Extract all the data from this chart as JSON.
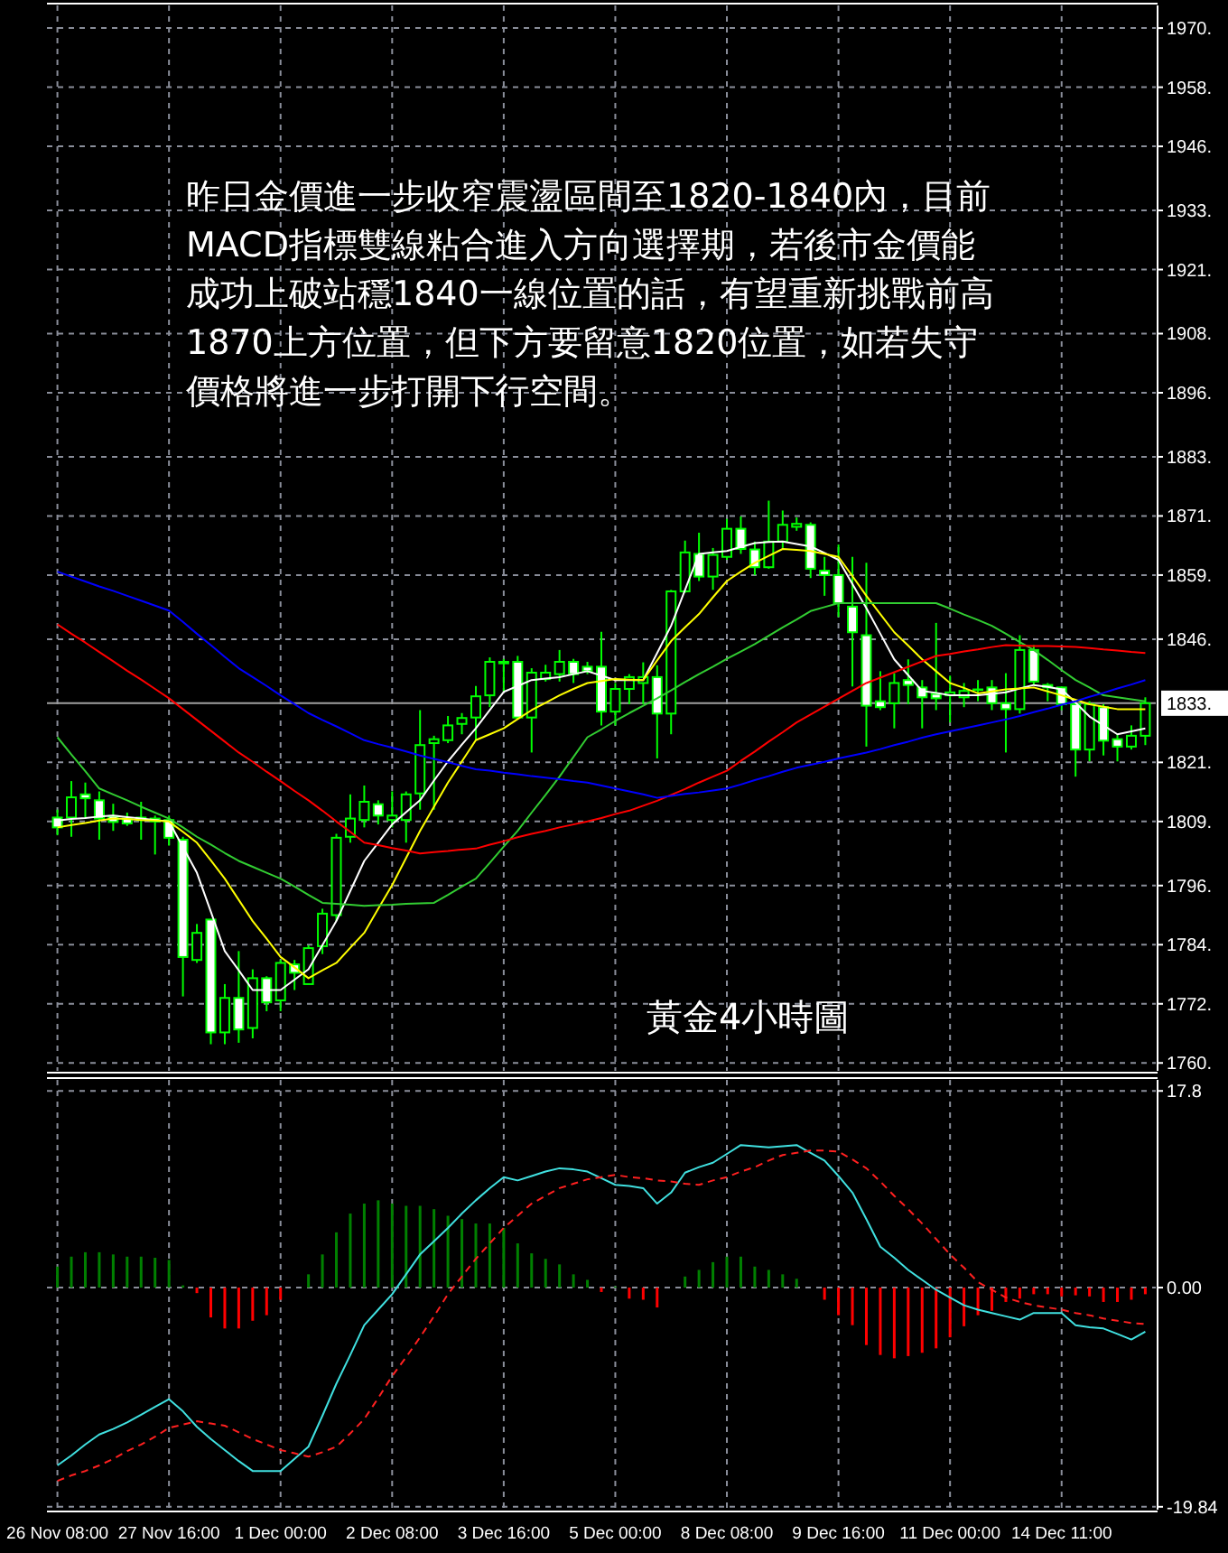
{
  "chart_data": [
    {
      "type": "candlestick",
      "ylim": [
        1758.9,
        1975.1
      ],
      "tick_labels": "y",
      "grid": true,
      "annotations": [
        "昨日金價進一步收窄震盪區間至1820-1840內，目前MACD指標雙線粘合進入方向選擇期，若後市金價能成功上破站穩1840一線位置的話，有望重新挑戰前高1870上方位置，但下方要留意1820位置，如若失守價格將進一步打開下行空間。",
        "黃金4小時圖"
      ],
      "categories": [
        null,
        null,
        null,
        null,
        null,
        null,
        null,
        null,
        null,
        null,
        null,
        null,
        null,
        null,
        null,
        null,
        null,
        null,
        null,
        null,
        null,
        null,
        null,
        null,
        null,
        null,
        null,
        null,
        null,
        null,
        null,
        null,
        null,
        null,
        null,
        null,
        null,
        null,
        null,
        null,
        null,
        null,
        null,
        null,
        null,
        null,
        null,
        null,
        null,
        null,
        null,
        null,
        null,
        null,
        null,
        null,
        null,
        null,
        null,
        null,
        null,
        null,
        null,
        null,
        null,
        null,
        null,
        null,
        null,
        null,
        null,
        null,
        null,
        null,
        null,
        null,
        null,
        null,
        null
      ],
      "yticks": [
        {
          "value": 1760.5,
          "label": "1760."
        },
        {
          "value": 1772.5,
          "label": "1772."
        },
        {
          "value": 1784.5,
          "label": "1784."
        },
        {
          "value": 1796.5,
          "label": "1796."
        },
        {
          "value": 1809.5,
          "label": "1809."
        },
        {
          "value": 1821.5,
          "label": "1821."
        },
        {
          "value": 1846.5,
          "label": "1846."
        },
        {
          "value": 1859.5,
          "label": "1859."
        },
        {
          "value": 1871.5,
          "label": "1871."
        },
        {
          "value": 1883.5,
          "label": "1883."
        },
        {
          "value": 1896.5,
          "label": "1896."
        },
        {
          "value": 1908.5,
          "label": "1908."
        },
        {
          "value": 1921.5,
          "label": "1921."
        },
        {
          "value": 1933.5,
          "label": "1933."
        },
        {
          "value": 1946.5,
          "label": "1946."
        },
        {
          "value": 1958.5,
          "label": "1958."
        },
        {
          "value": 1970.5,
          "label": "1970."
        }
      ],
      "ref_lines": [
        {
          "axis": "y",
          "value": 1833.5,
          "label": "1833.",
          "color": "#a0a0a0"
        }
      ],
      "ohlc": [
        [
          1810.3,
          1811.9,
          1806.7,
          1808.3
        ],
        [
          1810.3,
          1817.7,
          1806.4,
          1814.4
        ],
        [
          1815.0,
          1817.4,
          1810.1,
          1814.2
        ],
        [
          1813.8,
          1815.6,
          1805.8,
          1810.1
        ],
        [
          1810.6,
          1813.1,
          1807.6,
          1809.4
        ],
        [
          1810.1,
          1811.3,
          1808.6,
          1809.1
        ],
        [
          1809.8,
          1813.5,
          1805.8,
          1810.3
        ],
        [
          1810.1,
          1810.7,
          1802.8,
          1809.5
        ],
        [
          1809.8,
          1810.7,
          1804.6,
          1806.2
        ],
        [
          1805.8,
          1806.4,
          1774.0,
          1782.0
        ],
        [
          1781.4,
          1788.7,
          1780.8,
          1786.9
        ],
        [
          1789.6,
          1789.6,
          1764.3,
          1766.7
        ],
        [
          1766.7,
          1776.5,
          1764.3,
          1773.7
        ],
        [
          1773.7,
          1783.2,
          1764.6,
          1767.3
        ],
        [
          1767.6,
          1779.5,
          1765.5,
          1777.7
        ],
        [
          1777.7,
          1778.1,
          1771.0,
          1772.8
        ],
        [
          1773.2,
          1781.4,
          1771.0,
          1780.8
        ],
        [
          1780.5,
          1781.4,
          1775.3,
          1778.8
        ],
        [
          1776.5,
          1784.4,
          1776.5,
          1783.8
        ],
        [
          1784.2,
          1791.8,
          1782.6,
          1790.8
        ],
        [
          1790.5,
          1807.0,
          1789.3,
          1806.2
        ],
        [
          1806.4,
          1815.0,
          1805.2,
          1810.1
        ],
        [
          1809.8,
          1816.8,
          1808.3,
          1813.5
        ],
        [
          1813.0,
          1813.8,
          1808.9,
          1810.7
        ],
        [
          1809.8,
          1815.6,
          1808.3,
          1810.7
        ],
        [
          1809.8,
          1815.6,
          1805.2,
          1815.0
        ],
        [
          1815.2,
          1832.1,
          1811.9,
          1825.0
        ],
        [
          1825.4,
          1826.9,
          1811.9,
          1826.2
        ],
        [
          1826.0,
          1830.9,
          1825.4,
          1829.0
        ],
        [
          1829.3,
          1831.5,
          1827.2,
          1830.5
        ],
        [
          1830.6,
          1837.0,
          1826.0,
          1834.9
        ],
        [
          1835.1,
          1842.8,
          1832.7,
          1841.9
        ],
        [
          1841.9,
          1842.5,
          1835.8,
          1841.6
        ],
        [
          1841.9,
          1843.1,
          1830.3,
          1830.6
        ],
        [
          1830.6,
          1840.6,
          1823.5,
          1839.7
        ],
        [
          1838.4,
          1841.3,
          1837.9,
          1839.7
        ],
        [
          1839.4,
          1844.3,
          1837.9,
          1841.9
        ],
        [
          1841.9,
          1842.5,
          1837.6,
          1839.4
        ],
        [
          1840.9,
          1841.9,
          1839.4,
          1840.0
        ],
        [
          1840.9,
          1848.0,
          1829.0,
          1831.8
        ],
        [
          1831.8,
          1837.6,
          1829.0,
          1836.4
        ],
        [
          1836.4,
          1839.4,
          1833.3,
          1838.8
        ],
        [
          1837.6,
          1841.8,
          1833.3,
          1838.8
        ],
        [
          1838.8,
          1841.2,
          1822.3,
          1831.4
        ],
        [
          1831.4,
          1856.5,
          1827.2,
          1856.2
        ],
        [
          1856.2,
          1866.5,
          1855.9,
          1864.1
        ],
        [
          1863.8,
          1868.1,
          1858.3,
          1859.2
        ],
        [
          1859.2,
          1865.0,
          1856.5,
          1863.6
        ],
        [
          1863.2,
          1870.9,
          1862.6,
          1868.9
        ],
        [
          1868.9,
          1871.4,
          1863.8,
          1864.8
        ],
        [
          1864.7,
          1866.3,
          1859.5,
          1861.1
        ],
        [
          1861.1,
          1874.6,
          1860.8,
          1866.3
        ],
        [
          1866.3,
          1872.6,
          1865.0,
          1869.7
        ],
        [
          1869.3,
          1871.2,
          1868.5,
          1869.9
        ],
        [
          1869.7,
          1870.2,
          1858.9,
          1860.8
        ],
        [
          1860.4,
          1863.2,
          1855.3,
          1859.5
        ],
        [
          1859.5,
          1865.7,
          1851.0,
          1853.8
        ],
        [
          1853.1,
          1863.2,
          1836.9,
          1847.9
        ],
        [
          1847.3,
          1862.0,
          1824.7,
          1833.0
        ],
        [
          1833.9,
          1840.0,
          1832.1,
          1832.7
        ],
        [
          1833.5,
          1839.6,
          1828.4,
          1837.6
        ],
        [
          1838.2,
          1842.4,
          1833.3,
          1837.2
        ],
        [
          1836.7,
          1838.2,
          1828.4,
          1834.7
        ],
        [
          1835.4,
          1849.8,
          1832.1,
          1834.5
        ],
        [
          1835.1,
          1839.1,
          1829.6,
          1835.7
        ],
        [
          1834.7,
          1837.6,
          1832.7,
          1836.0
        ],
        [
          1836.3,
          1838.2,
          1833.9,
          1836.2
        ],
        [
          1836.7,
          1838.2,
          1832.1,
          1833.5
        ],
        [
          1833.5,
          1839.6,
          1823.5,
          1832.3
        ],
        [
          1832.3,
          1847.3,
          1831.4,
          1844.3
        ],
        [
          1844.3,
          1845.3,
          1837.2,
          1837.9
        ],
        [
          1837.2,
          1837.6,
          1833.9,
          1836.7
        ],
        [
          1836.7,
          1836.9,
          1832.1,
          1833.3
        ],
        [
          1833.3,
          1833.5,
          1818.6,
          1824.1
        ],
        [
          1824.1,
          1833.9,
          1821.7,
          1833.3
        ],
        [
          1832.7,
          1833.3,
          1822.9,
          1825.9
        ],
        [
          1826.2,
          1827.2,
          1821.7,
          1824.7
        ],
        [
          1824.7,
          1829.0,
          1824.1,
          1826.9
        ],
        [
          1826.9,
          1834.7,
          1825.0,
          1833.5
        ]
      ],
      "series": [
        {
          "type": "line",
          "color": "#ffffff",
          "values": [
            1809.7,
            1810.0,
            1810.2,
            1810.5,
            1810.7,
            1810.4,
            1810.1,
            1809.8,
            1809.5,
            1804.3,
            1799.1,
            1791.2,
            1783.2,
            1779.3,
            1775.3,
            1775.3,
            1775.3,
            1777.4,
            1779.5,
            1784.4,
            1789.3,
            1795.4,
            1801.5,
            1805.2,
            1808.9,
            1811.4,
            1813.8,
            1817.8,
            1821.7,
            1825.1,
            1828.4,
            1832.1,
            1835.8,
            1837.0,
            1838.2,
            1838.5,
            1838.8,
            1839.4,
            1840.0,
            1839.1,
            1838.2,
            1838.2,
            1838.2,
            1843.7,
            1849.2,
            1856.5,
            1863.8,
            1864.1,
            1864.4,
            1865.2,
            1866.0,
            1866.2,
            1866.3,
            1865.8,
            1865.3,
            1864.0,
            1862.6,
            1857.7,
            1852.8,
            1847.6,
            1842.4,
            1839.2,
            1836.0,
            1835.6,
            1835.1,
            1835.1,
            1835.1,
            1835.4,
            1835.7,
            1836.5,
            1837.2,
            1836.8,
            1836.3,
            1833.6,
            1830.8,
            1829.0,
            1827.2,
            1827.8,
            1828.4
          ]
        },
        {
          "type": "line",
          "color": "#ffff00",
          "values": [
            1808.3,
            1808.8,
            1809.2,
            1809.7,
            1810.1,
            1810.0,
            1809.8,
            1809.7,
            1809.5,
            1807.4,
            1805.2,
            1801.6,
            1797.9,
            1793.6,
            1789.3,
            1785.7,
            1782.0,
            1779.9,
            1777.7,
            1779.3,
            1780.8,
            1783.9,
            1786.9,
            1791.8,
            1796.6,
            1802.1,
            1807.6,
            1812.5,
            1817.4,
            1821.7,
            1826.0,
            1827.2,
            1828.4,
            1830.3,
            1832.1,
            1833.6,
            1835.1,
            1836.4,
            1837.6,
            1838.0,
            1838.4,
            1838.3,
            1838.2,
            1842.2,
            1846.1,
            1848.9,
            1851.6,
            1855.0,
            1858.3,
            1860.2,
            1862.0,
            1863.4,
            1864.8,
            1864.6,
            1864.4,
            1863.8,
            1863.2,
            1859.3,
            1855.3,
            1851.6,
            1847.9,
            1845.2,
            1842.4,
            1840.0,
            1837.6,
            1836.6,
            1835.5,
            1835.9,
            1836.3,
            1836.5,
            1836.7,
            1835.9,
            1835.1,
            1834.2,
            1833.3,
            1832.8,
            1832.3,
            1832.3,
            1832.3
          ]
        },
        {
          "type": "line",
          "color": "#32cd32",
          "values": [
            1826.6,
            1823.1,
            1819.7,
            1816.2,
            1815.0,
            1813.8,
            1812.5,
            1811.3,
            1810.1,
            1808.3,
            1806.4,
            1804.8,
            1803.1,
            1801.5,
            1800.3,
            1799.1,
            1797.9,
            1796.3,
            1794.6,
            1793.0,
            1792.8,
            1792.6,
            1792.4,
            1792.5,
            1792.6,
            1792.8,
            1792.9,
            1793.0,
            1794.6,
            1796.3,
            1797.9,
            1801.1,
            1804.4,
            1807.6,
            1811.3,
            1814.9,
            1818.6,
            1822.6,
            1826.6,
            1828.2,
            1829.9,
            1831.5,
            1833.0,
            1834.5,
            1836.1,
            1837.8,
            1839.4,
            1840.9,
            1842.5,
            1844.0,
            1845.5,
            1847.2,
            1848.9,
            1850.5,
            1852.2,
            1853.0,
            1853.8,
            1853.8,
            1853.8,
            1853.8,
            1853.8,
            1853.8,
            1853.8,
            1853.8,
            1852.7,
            1851.5,
            1850.4,
            1849.2,
            1847.6,
            1845.9,
            1844.3,
            1842.3,
            1840.2,
            1838.2,
            1836.7,
            1835.1,
            1834.7,
            1834.3,
            1833.9
          ]
        },
        {
          "type": "line",
          "color": "#ff0000",
          "values": [
            1849.5,
            1847.6,
            1845.8,
            1843.9,
            1842.0,
            1840.1,
            1838.3,
            1836.4,
            1834.5,
            1832.3,
            1830.1,
            1827.9,
            1825.7,
            1823.5,
            1821.6,
            1819.6,
            1817.7,
            1815.7,
            1813.8,
            1811.7,
            1809.5,
            1807.4,
            1805.2,
            1804.7,
            1804.1,
            1803.6,
            1803.0,
            1803.3,
            1803.5,
            1803.8,
            1804.0,
            1804.8,
            1805.5,
            1806.3,
            1807.0,
            1807.6,
            1808.3,
            1808.9,
            1809.5,
            1810.2,
            1811.0,
            1811.7,
            1812.7,
            1813.7,
            1814.9,
            1816.1,
            1817.4,
            1818.6,
            1819.8,
            1821.8,
            1823.7,
            1825.7,
            1827.6,
            1829.6,
            1831.2,
            1832.8,
            1834.4,
            1836.0,
            1837.6,
            1838.7,
            1839.8,
            1840.9,
            1842.0,
            1843.1,
            1843.5,
            1844.0,
            1844.4,
            1844.9,
            1845.3,
            1845.2,
            1845.1,
            1845.1,
            1845.0,
            1844.9,
            1844.7,
            1844.4,
            1844.2,
            1843.9,
            1843.7
          ]
        },
        {
          "type": "line",
          "color": "#0000ff",
          "values": [
            1860.2,
            1859.2,
            1858.2,
            1857.2,
            1856.3,
            1855.3,
            1854.3,
            1853.3,
            1852.3,
            1850.0,
            1847.6,
            1845.3,
            1842.9,
            1840.6,
            1838.8,
            1837.0,
            1835.1,
            1833.3,
            1831.5,
            1830.1,
            1828.8,
            1827.4,
            1826.0,
            1825.2,
            1824.5,
            1823.7,
            1822.9,
            1822.2,
            1821.5,
            1820.8,
            1820.1,
            1819.8,
            1819.4,
            1819.1,
            1818.7,
            1818.4,
            1818.1,
            1817.7,
            1817.4,
            1816.8,
            1816.2,
            1815.6,
            1815.0,
            1814.3,
            1814.7,
            1815.1,
            1815.4,
            1815.8,
            1816.2,
            1817.0,
            1817.9,
            1818.7,
            1819.6,
            1820.4,
            1821.0,
            1821.6,
            1822.3,
            1822.9,
            1823.5,
            1824.2,
            1825.0,
            1825.7,
            1826.5,
            1827.2,
            1827.8,
            1828.4,
            1829.0,
            1829.6,
            1830.2,
            1830.9,
            1831.7,
            1832.4,
            1833.2,
            1833.9,
            1834.8,
            1835.6,
            1836.5,
            1837.3,
            1838.2
          ]
        }
      ]
    },
    {
      "type": "bar",
      "ylim": [
        -20.1,
        18.8
      ],
      "grid": true,
      "categories": [
        "26 Nov 08:00",
        null,
        null,
        null,
        null,
        null,
        null,
        null,
        "27 Nov 16:00",
        null,
        null,
        null,
        null,
        null,
        null,
        null,
        "1 Dec 00:00",
        null,
        null,
        null,
        null,
        null,
        null,
        null,
        "2 Dec 08:00",
        null,
        null,
        null,
        null,
        null,
        null,
        null,
        "3 Dec 16:00",
        null,
        null,
        null,
        null,
        null,
        null,
        null,
        "5 Dec 00:00",
        null,
        null,
        null,
        null,
        null,
        null,
        null,
        "8 Dec 08:00",
        null,
        null,
        null,
        null,
        null,
        null,
        null,
        "9 Dec 16:00",
        null,
        null,
        null,
        null,
        null,
        null,
        null,
        "11 Dec 00:00",
        null,
        null,
        null,
        null,
        null,
        null,
        null,
        "14 Dec 11:00",
        null,
        null,
        null,
        null,
        null,
        null
      ],
      "yticks": [
        17.8,
        {
          "value": 0,
          "label": "0.00"
        },
        -19.84
      ],
      "series": [
        {
          "type": "bar",
          "values": [
            1.9,
            2.8,
            3.2,
            3.2,
            3.0,
            2.8,
            2.8,
            2.7,
            2.5,
            0.2,
            -0.5,
            -2.7,
            -3.7,
            -3.7,
            -3.0,
            -2.5,
            -1.1,
            0.0,
            1.2,
            3.0,
            5.0,
            6.7,
            7.6,
            7.9,
            7.6,
            7.4,
            7.4,
            7.1,
            6.5,
            6.2,
            5.8,
            5.8,
            5.4,
            4.0,
            3.1,
            2.6,
            2.1,
            1.2,
            0.7,
            -0.4,
            0.1,
            -1.0,
            -1.1,
            -1.8,
            0.0,
            1.0,
            1.6,
            2.3,
            2.8,
            2.8,
            1.9,
            1.6,
            1.2,
            0.8,
            0.0,
            -1.1,
            -2.5,
            -3.4,
            -5.2,
            -6.1,
            -6.4,
            -6.2,
            -5.9,
            -5.5,
            -4.5,
            -3.5,
            -2.5,
            -2.1,
            -1.3,
            -1.0,
            -0.6,
            -0.6,
            -0.8,
            -0.7,
            -0.8,
            -1.3,
            -1.3,
            -1.1,
            -0.6
          ],
          "colors": [
            "#008000",
            "#008000",
            "#008000",
            "#008000",
            "#008000",
            "#008000",
            "#008000",
            "#008000",
            "#008000",
            "#008000",
            "#ff0000",
            "#ff0000",
            "#ff0000",
            "#ff0000",
            "#ff0000",
            "#ff0000",
            "#ff0000",
            "#008000",
            "#008000",
            "#008000",
            "#008000",
            "#008000",
            "#008000",
            "#008000",
            "#008000",
            "#008000",
            "#008000",
            "#008000",
            "#008000",
            "#008000",
            "#008000",
            "#008000",
            "#008000",
            "#008000",
            "#008000",
            "#008000",
            "#008000",
            "#008000",
            "#008000",
            "#ff0000",
            "#008000",
            "#ff0000",
            "#ff0000",
            "#ff0000",
            "#008000",
            "#008000",
            "#008000",
            "#008000",
            "#008000",
            "#008000",
            "#008000",
            "#008000",
            "#008000",
            "#008000",
            "#008000",
            "#ff0000",
            "#ff0000",
            "#ff0000",
            "#ff0000",
            "#ff0000",
            "#ff0000",
            "#ff0000",
            "#ff0000",
            "#ff0000",
            "#ff0000",
            "#ff0000",
            "#ff0000",
            "#ff0000",
            "#ff0000",
            "#ff0000",
            "#ff0000",
            "#ff0000",
            "#ff0000",
            "#ff0000",
            "#ff0000",
            "#ff0000",
            "#ff0000",
            "#ff0000",
            "#ff0000"
          ]
        },
        {
          "type": "line",
          "color": "#40e0e0",
          "values": [
            -16.1,
            -15.2,
            -14.2,
            -13.3,
            -12.8,
            -12.2,
            -11.5,
            -10.8,
            -10.1,
            -11.2,
            -12.6,
            -13.7,
            -14.7,
            -15.7,
            -16.6,
            -16.6,
            -16.6,
            -15.5,
            -14.4,
            -11.6,
            -8.7,
            -6.1,
            -3.4,
            -2.0,
            -0.6,
            1.2,
            3.0,
            4.2,
            5.4,
            6.7,
            7.9,
            9.0,
            10.0,
            9.7,
            10.1,
            10.5,
            10.8,
            10.7,
            10.5,
            9.9,
            9.3,
            9.2,
            9.0,
            7.6,
            8.6,
            10.4,
            10.9,
            11.3,
            12.1,
            12.9,
            12.8,
            12.7,
            12.8,
            12.9,
            12.2,
            11.5,
            10.1,
            8.6,
            6.2,
            3.7,
            2.7,
            1.6,
            0.7,
            -0.2,
            -0.9,
            -1.6,
            -2.0,
            -2.3,
            -2.6,
            -2.9,
            -2.3,
            -2.3,
            -2.3,
            -3.4,
            -3.6,
            -3.7,
            -4.2,
            -4.7,
            -4.0
          ]
        },
        {
          "type": "line",
          "color": "#ff2020",
          "line_style": "dashed",
          "values": [
            -17.5,
            -17.0,
            -16.6,
            -16.1,
            -15.5,
            -14.8,
            -14.2,
            -13.5,
            -12.7,
            -12.4,
            -12.1,
            -12.3,
            -12.5,
            -13.1,
            -13.7,
            -14.2,
            -14.7,
            -15.0,
            -15.3,
            -14.9,
            -14.4,
            -13.2,
            -11.9,
            -10.0,
            -8.0,
            -6.3,
            -4.5,
            -2.6,
            -0.6,
            1.0,
            2.6,
            4.0,
            5.4,
            6.5,
            7.6,
            8.3,
            9.0,
            9.4,
            9.8,
            10.0,
            10.2,
            10.0,
            9.9,
            9.7,
            9.6,
            9.4,
            9.3,
            9.7,
            10.0,
            10.5,
            10.9,
            11.5,
            12.0,
            12.2,
            12.4,
            12.4,
            12.3,
            11.6,
            10.8,
            9.6,
            8.3,
            7.1,
            5.8,
            4.4,
            3.0,
            1.8,
            0.5,
            -0.2,
            -0.9,
            -1.3,
            -1.6,
            -1.8,
            -2.0,
            -2.3,
            -2.5,
            -2.8,
            -3.0,
            -3.2,
            -3.3
          ]
        }
      ]
    }
  ]
}
